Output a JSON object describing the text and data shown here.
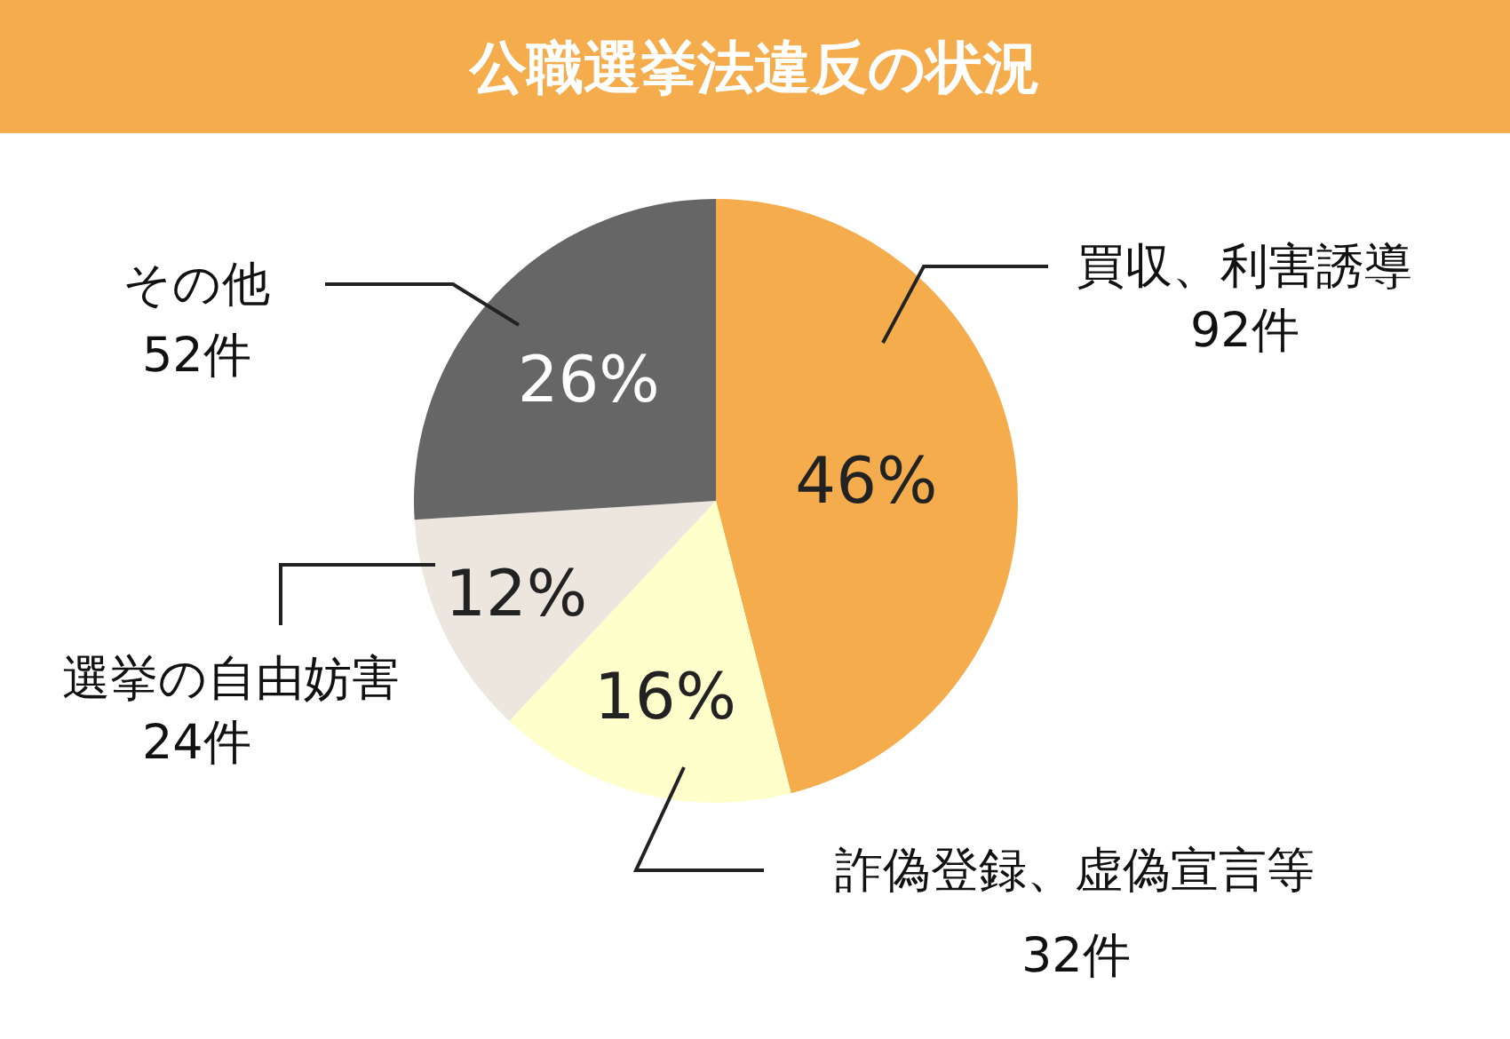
{
  "chart_data": {
    "type": "pie",
    "title": "公職選挙法違反の状況",
    "categories": [
      "買収、利害誘導",
      "詐偽登録、虚偽宣言等",
      "選挙の自由妨害",
      "その他"
    ],
    "values": [
      46,
      16,
      12,
      26
    ],
    "value_labels": [
      "46%",
      "16%",
      "12%",
      "26%"
    ],
    "annotations": [
      "92件",
      "32件",
      "24件",
      "52件"
    ],
    "colors": [
      "#f4ac4c",
      "#ffffcc",
      "#ede6df",
      "#666666"
    ]
  }
}
